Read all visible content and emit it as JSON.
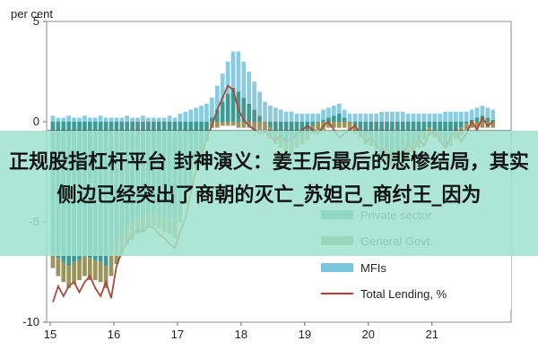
{
  "chart_data": {
    "type": "bar",
    "ylabel": "per cent",
    "ylim": [
      -10,
      5
    ],
    "yticks": [
      5,
      0,
      -5,
      -10
    ],
    "xticks": [
      "15",
      "16",
      "17",
      "18",
      "19",
      "20",
      "21"
    ],
    "x_start": 2015.0,
    "months": [
      "2015-01",
      "2015-02",
      "2015-03",
      "2015-04",
      "2015-05",
      "2015-06",
      "2015-07",
      "2015-08",
      "2015-09",
      "2015-10",
      "2015-11",
      "2015-12",
      "2016-01",
      "2016-02",
      "2016-03",
      "2016-04",
      "2016-05",
      "2016-06",
      "2016-07",
      "2016-08",
      "2016-09",
      "2016-10",
      "2016-11",
      "2016-12",
      "2017-01",
      "2017-02",
      "2017-03",
      "2017-04",
      "2017-05",
      "2017-06",
      "2017-07",
      "2017-08",
      "2017-09",
      "2017-10",
      "2017-11",
      "2017-12",
      "2018-01",
      "2018-02",
      "2018-03",
      "2018-04",
      "2018-05",
      "2018-06",
      "2018-07",
      "2018-08",
      "2018-09",
      "2018-10",
      "2018-11",
      "2018-12",
      "2019-01",
      "2019-02",
      "2019-03",
      "2019-04",
      "2019-05",
      "2019-06",
      "2019-07",
      "2019-08",
      "2019-09",
      "2019-10",
      "2019-11",
      "2019-12",
      "2020-01",
      "2020-02",
      "2020-03",
      "2020-04",
      "2020-05",
      "2020-06",
      "2020-07",
      "2020-08",
      "2020-09",
      "2020-10",
      "2020-11",
      "2020-12",
      "2021-01",
      "2021-02",
      "2021-03",
      "2021-04",
      "2021-05",
      "2021-06",
      "2021-07",
      "2021-08",
      "2021-09",
      "2021-10",
      "2021-11",
      "2021-12"
    ],
    "series": [
      {
        "name": "Private sector",
        "color": "#2a8f8a",
        "kind": "bar",
        "values": [
          -6.5,
          -6.8,
          -7.0,
          -7.2,
          -7.0,
          -6.9,
          -6.7,
          -6.8,
          -6.9,
          -7.0,
          -7.2,
          -6.5,
          -6.0,
          -5.6,
          -5.2,
          -5.0,
          -4.8,
          -4.7,
          -4.6,
          -4.5,
          -4.6,
          -4.7,
          -4.8,
          -4.9,
          -4.2,
          -3.4,
          -2.6,
          -1.8,
          -1.2,
          -0.6,
          0.2,
          0.6,
          1.0,
          1.4,
          1.7,
          1.5,
          1.2,
          0.9,
          0.6,
          0.3,
          0.0,
          -0.3,
          -0.6,
          -0.8,
          -1.0,
          -1.0,
          -0.8,
          -0.6,
          -0.4,
          -0.2,
          0.0,
          0.1,
          0.2,
          0.3,
          0.4,
          0.2,
          0.0,
          -0.2,
          -0.4,
          -0.6,
          -0.7,
          -0.9,
          -1.1,
          -1.3,
          -1.5,
          -1.6,
          -1.4,
          -1.2,
          -1.0,
          -0.8,
          -0.5,
          -0.3,
          -0.4,
          -0.6,
          -0.8,
          -0.7,
          -0.5,
          -0.3,
          -0.1,
          0.1,
          0.2,
          0.3,
          0.2,
          0.1
        ]
      },
      {
        "name": "General Govt.",
        "color": "#8f8a4f",
        "kind": "bar",
        "values": [
          -0.8,
          -0.9,
          -1.0,
          -1.1,
          -1.1,
          -1.0,
          -1.0,
          -1.1,
          -1.0,
          -1.0,
          -1.1,
          -1.2,
          -1.1,
          -1.0,
          -0.9,
          -0.9,
          -0.8,
          -0.8,
          -0.7,
          -0.7,
          -0.7,
          -0.8,
          -0.8,
          -0.9,
          -0.8,
          -0.7,
          -0.6,
          -0.5,
          -0.5,
          -0.4,
          -0.3,
          -0.3,
          -0.2,
          -0.2,
          -0.2,
          -0.3,
          -0.3,
          -0.3,
          -0.4,
          -0.4,
          -0.4,
          -0.5,
          -0.5,
          -0.5,
          -0.6,
          -0.6,
          -0.5,
          -0.5,
          -0.5,
          -0.4,
          -0.4,
          -0.4,
          -0.3,
          -0.3,
          -0.3,
          -0.3,
          -0.4,
          -0.4,
          -0.4,
          -0.5,
          -0.5,
          -0.5,
          -0.6,
          -0.6,
          -0.7,
          -0.7,
          -0.6,
          -0.6,
          -0.5,
          -0.5,
          -0.4,
          -0.4,
          -0.4,
          -0.4,
          -0.5,
          -0.5,
          -0.4,
          -0.4,
          -0.3,
          -0.3,
          -0.3,
          -0.3,
          -0.3,
          -0.3
        ]
      },
      {
        "name": "MFIs",
        "color": "#7cc6de",
        "kind": "bar",
        "values": [
          0.3,
          0.2,
          0.2,
          0.3,
          0.2,
          0.2,
          0.3,
          0.2,
          0.2,
          0.3,
          0.2,
          0.2,
          0.2,
          0.2,
          0.3,
          0.2,
          0.2,
          0.3,
          0.2,
          0.2,
          0.2,
          0.2,
          0.3,
          0.2,
          0.4,
          0.5,
          0.6,
          0.7,
          0.8,
          0.9,
          1.0,
          1.2,
          1.4,
          1.6,
          1.8,
          2.0,
          1.8,
          1.6,
          1.4,
          1.2,
          1.0,
          0.8,
          0.7,
          0.6,
          0.5,
          0.5,
          0.4,
          0.4,
          0.4,
          0.4,
          0.4,
          0.5,
          0.5,
          0.5,
          0.5,
          0.4,
          0.4,
          0.4,
          0.4,
          0.4,
          0.4,
          0.4,
          0.5,
          0.5,
          0.5,
          0.5,
          0.5,
          0.4,
          0.4,
          0.4,
          0.4,
          0.4,
          0.4,
          0.4,
          0.5,
          0.5,
          0.5,
          0.5,
          0.5,
          0.5,
          0.5,
          0.5,
          0.5,
          0.5
        ]
      },
      {
        "name": "Total Lending, %",
        "color": "#d62f2f",
        "kind": "line",
        "values": [
          -9.0,
          -8.2,
          -8.7,
          -8.2,
          -8.0,
          -8.5,
          -8.0,
          -7.7,
          -8.3,
          -8.7,
          -8.0,
          -8.8,
          -7.2,
          -6.5,
          -6.0,
          -5.6,
          -5.4,
          -5.5,
          -5.2,
          -5.3,
          -5.6,
          -5.8,
          -6.1,
          -6.3,
          -5.5,
          -4.8,
          -3.6,
          -2.4,
          -1.8,
          -0.8,
          -0.2,
          0.6,
          1.2,
          1.8,
          1.6,
          0.6,
          0.1,
          -0.2,
          -0.4,
          -0.6,
          -0.5,
          -0.8,
          -0.9,
          -0.7,
          -1.0,
          -0.9,
          -0.6,
          -0.4,
          -0.2,
          -0.4,
          -0.6,
          -0.2,
          0.0,
          -0.4,
          -0.8,
          -0.6,
          -0.4,
          -0.2,
          -0.6,
          -1.0,
          -0.8,
          -1.2,
          -1.5,
          -1.2,
          -1.8,
          -1.4,
          -1.8,
          -1.0,
          -1.5,
          -0.8,
          -1.2,
          -0.6,
          -0.5,
          -0.9,
          -1.3,
          -0.8,
          -0.4,
          -1.0,
          -0.6,
          0.0,
          -0.4,
          0.2,
          -0.2,
          0.0
        ]
      }
    ],
    "legend_position": "bottom-right",
    "grid": false
  },
  "banner": {
    "text": "正规股指杠杆平台 封神演义：姜王后最后的悲惨结局，其实侧边已经突出了商朝的灭亡_苏妲己_商纣王_因为"
  }
}
